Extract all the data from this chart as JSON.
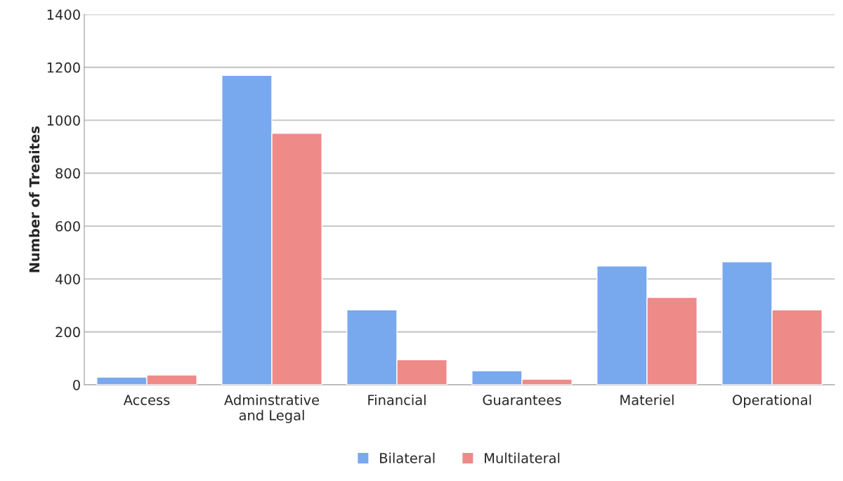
{
  "chart_data": {
    "type": "bar",
    "ylabel": "Number of Treaites",
    "categories": [
      "Access",
      "Adminstrative\nand Legal",
      "Financial",
      "Guarantees",
      "Materiel",
      "Operational"
    ],
    "series": [
      {
        "name": "Bilateral",
        "color": "#78a8ee",
        "values": [
          29,
          1170,
          283,
          53,
          449,
          465
        ]
      },
      {
        "name": "Multilateral",
        "color": "#ee8a88",
        "values": [
          37,
          951,
          95,
          21,
          330,
          283
        ]
      }
    ],
    "ylim": [
      0,
      1400
    ],
    "yticks": [
      0,
      200,
      400,
      600,
      800,
      1000,
      1200,
      1400
    ],
    "grid": "y",
    "legend": "bottom"
  }
}
